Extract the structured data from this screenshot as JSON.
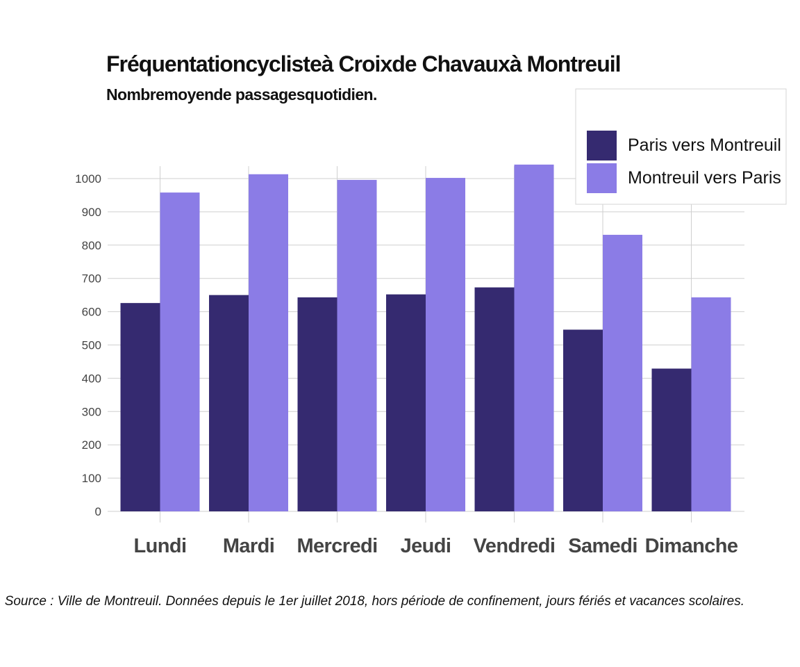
{
  "chart_data": {
    "type": "bar",
    "title": "Fréquentationcyclisteà Croixde Chavauxà Montreuil",
    "subtitle": "Nombremoyende passagesquotidien.",
    "caption": "Source : Ville de Montreuil. Données depuis le 1er juillet 2018, hors période de confinement, jours fériés et vacances scolaires.",
    "categories": [
      "Lundi",
      "Mardi",
      "Mercredi",
      "Jeudi",
      "Vendredi",
      "Samedi",
      "Dimanche"
    ],
    "series": [
      {
        "name": "Paris vers Montreuil",
        "color": "#352a70",
        "values": [
          626,
          650,
          643,
          652,
          673,
          546,
          429
        ]
      },
      {
        "name": "Montreuil vers Paris",
        "color": "#8b7ce6",
        "values": [
          958,
          1013,
          996,
          1002,
          1042,
          831,
          643
        ]
      }
    ],
    "yticks": [
      0,
      100,
      200,
      300,
      400,
      500,
      600,
      700,
      800,
      900,
      1000
    ],
    "ylim": [
      0,
      1100
    ],
    "xlabel": "",
    "ylabel": "",
    "grid": true,
    "legend": "top-right"
  }
}
